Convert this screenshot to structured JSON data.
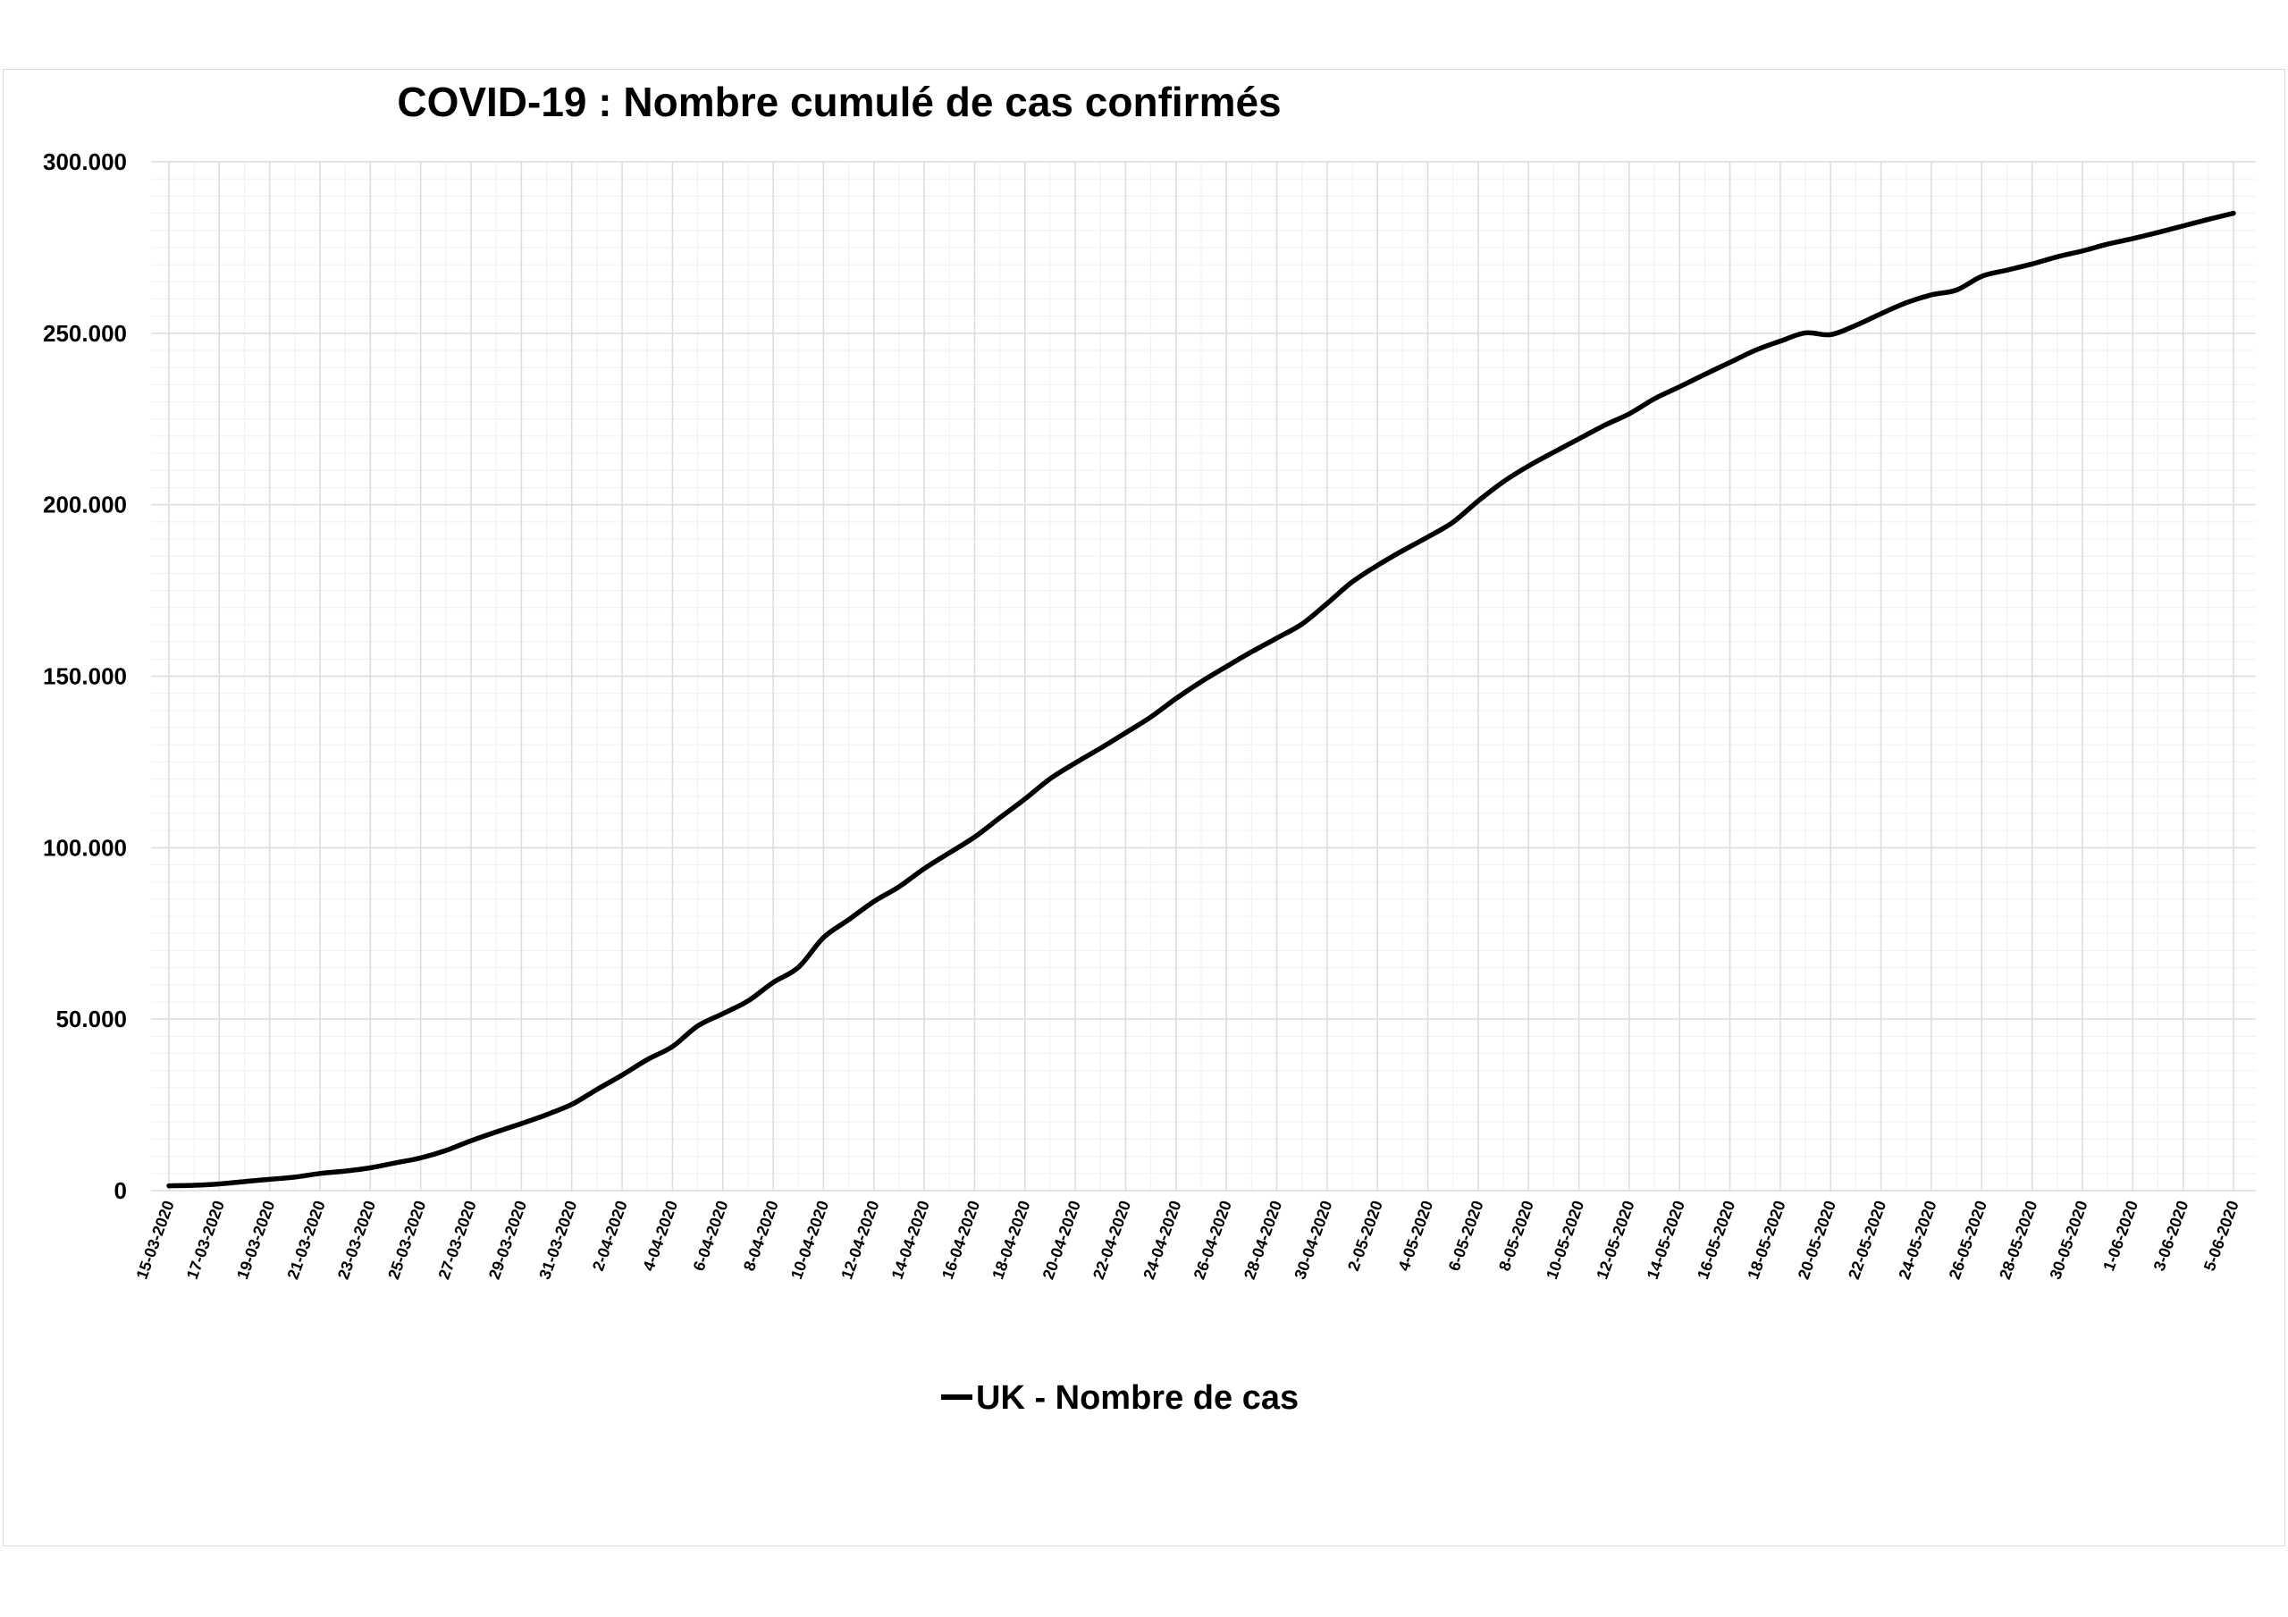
{
  "chart_data": {
    "type": "line",
    "title": "COVID-19 : Nombre cumulé de cas confirmés",
    "xlabel": "",
    "ylabel": "",
    "ylim": [
      0,
      300000
    ],
    "y_ticks": [
      0,
      50000,
      100000,
      150000,
      200000,
      250000,
      300000
    ],
    "y_tick_labels": [
      "0",
      "50.000",
      "100.000",
      "150.000",
      "200.000",
      "250.000",
      "300.000"
    ],
    "x_tick_labels": [
      "15-03-2020",
      "17-03-2020",
      "19-03-2020",
      "21-03-2020",
      "23-03-2020",
      "25-03-2020",
      "27-03-2020",
      "29-03-2020",
      "31-03-2020",
      "2-04-2020",
      "4-04-2020",
      "6-04-2020",
      "8-04-2020",
      "10-04-2020",
      "12-04-2020",
      "14-04-2020",
      "16-04-2020",
      "18-04-2020",
      "20-04-2020",
      "22-04-2020",
      "24-04-2020",
      "26-04-2020",
      "28-04-2020",
      "30-04-2020",
      "2-05-2020",
      "4-05-2020",
      "6-05-2020",
      "8-05-2020",
      "10-05-2020",
      "12-05-2020",
      "14-05-2020",
      "16-05-2020",
      "18-05-2020",
      "20-05-2020",
      "22-05-2020",
      "24-05-2020",
      "26-05-2020",
      "28-05-2020",
      "30-05-2020",
      "1-06-2020",
      "3-06-2020",
      "5-06-2020"
    ],
    "grid": true,
    "legend_position": "bottom",
    "line_color": "#000000",
    "series": [
      {
        "name": "UK - Nombre de cas",
        "x": [
          "15-03-2020",
          "16-03-2020",
          "17-03-2020",
          "18-03-2020",
          "19-03-2020",
          "20-03-2020",
          "21-03-2020",
          "22-03-2020",
          "23-03-2020",
          "24-03-2020",
          "25-03-2020",
          "26-03-2020",
          "27-03-2020",
          "28-03-2020",
          "29-03-2020",
          "30-03-2020",
          "31-03-2020",
          "01-04-2020",
          "02-04-2020",
          "03-04-2020",
          "04-04-2020",
          "05-04-2020",
          "06-04-2020",
          "07-04-2020",
          "08-04-2020",
          "09-04-2020",
          "10-04-2020",
          "11-04-2020",
          "12-04-2020",
          "13-04-2020",
          "14-04-2020",
          "15-04-2020",
          "16-04-2020",
          "17-04-2020",
          "18-04-2020",
          "19-04-2020",
          "20-04-2020",
          "21-04-2020",
          "22-04-2020",
          "23-04-2020",
          "24-04-2020",
          "25-04-2020",
          "26-04-2020",
          "27-04-2020",
          "28-04-2020",
          "29-04-2020",
          "30-04-2020",
          "01-05-2020",
          "02-05-2020",
          "03-05-2020",
          "04-05-2020",
          "05-05-2020",
          "06-05-2020",
          "07-05-2020",
          "08-05-2020",
          "09-05-2020",
          "10-05-2020",
          "11-05-2020",
          "12-05-2020",
          "13-05-2020",
          "14-05-2020",
          "15-05-2020",
          "16-05-2020",
          "17-05-2020",
          "18-05-2020",
          "19-05-2020",
          "20-05-2020",
          "21-05-2020",
          "22-05-2020",
          "23-05-2020",
          "24-05-2020",
          "25-05-2020",
          "26-05-2020",
          "27-05-2020",
          "28-05-2020",
          "29-05-2020",
          "30-05-2020",
          "31-05-2020",
          "01-06-2020",
          "02-06-2020",
          "03-06-2020",
          "04-06-2020",
          "05-06-2020"
        ],
        "values": [
          1400,
          1550,
          1950,
          2650,
          3300,
          3950,
          5000,
          5700,
          6650,
          8100,
          9550,
          11700,
          14550,
          17100,
          19550,
          22150,
          25150,
          29500,
          33700,
          38200,
          42000,
          48000,
          51600,
          55300,
          60700,
          65100,
          73800,
          79000,
          84300,
          88600,
          93900,
          98500,
          103100,
          108700,
          114200,
          120100,
          124700,
          129000,
          133500,
          138100,
          143500,
          148400,
          152800,
          157100,
          161100,
          165200,
          171200,
          177500,
          182300,
          186600,
          190600,
          194900,
          201100,
          206700,
          211300,
          215300,
          219200,
          223100,
          226500,
          230900,
          234400,
          238000,
          241500,
          245000,
          247700,
          250100,
          249600,
          252300,
          255700,
          258900,
          261200,
          262600,
          266600,
          268400,
          270200,
          272300,
          274000,
          276000,
          277600,
          279400,
          281300,
          283200,
          285000
        ]
      }
    ]
  }
}
